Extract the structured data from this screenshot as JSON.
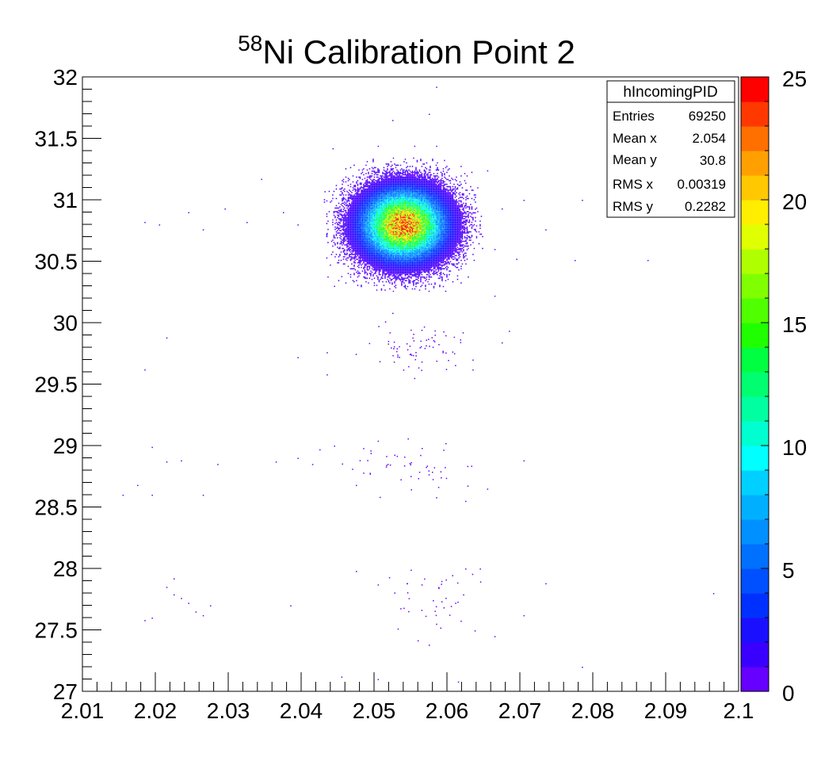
{
  "chart_data": {
    "type": "heatmap",
    "title_sup": "58",
    "title_main": "Ni Calibration Point 2",
    "xlim": [
      2.01,
      2.1
    ],
    "ylim": [
      27,
      32
    ],
    "x_ticks": [
      "2.01",
      "2.02",
      "2.03",
      "2.04",
      "2.05",
      "2.06",
      "2.07",
      "2.08",
      "2.09",
      "2.1"
    ],
    "x_tick_values": [
      2.01,
      2.02,
      2.03,
      2.04,
      2.05,
      2.06,
      2.07,
      2.08,
      2.09,
      2.1
    ],
    "y_ticks": [
      "27",
      "27.5",
      "28",
      "28.5",
      "29",
      "29.5",
      "30",
      "30.5",
      "31",
      "31.5",
      "32"
    ],
    "y_tick_values": [
      27,
      27.5,
      28,
      28.5,
      29,
      29.5,
      30,
      30.5,
      31,
      31.5,
      32
    ],
    "z_range": [
      0,
      25
    ],
    "z_ticks": [
      "0",
      "5",
      "10",
      "15",
      "20",
      "25"
    ],
    "z_tick_values": [
      0,
      5,
      10,
      15,
      20,
      25
    ],
    "palette": [
      "#6600ff",
      "#3a00ff",
      "#1a10ff",
      "#0030ff",
      "#0050ff",
      "#0070ff",
      "#0090ff",
      "#00b0ff",
      "#00d0ff",
      "#00ffff",
      "#00ffd0",
      "#00ffa0",
      "#00ff70",
      "#00ff40",
      "#20ff00",
      "#50ff00",
      "#80ff00",
      "#b0ff00",
      "#e0ff00",
      "#ffee00",
      "#ffc800",
      "#ffa000",
      "#ff7000",
      "#ff3800",
      "#ff0000"
    ],
    "clusters": [
      {
        "x_mean": 2.054,
        "y_mean": 30.8,
        "x_sigma": 0.0032,
        "y_sigma": 0.16,
        "peak": 23
      },
      {
        "x_mean": 2.056,
        "y_mean": 29.82,
        "x_sigma": 0.0033,
        "y_sigma": 0.09,
        "peak": 1
      },
      {
        "x_mean": 2.056,
        "y_mean": 28.82,
        "x_sigma": 0.0045,
        "y_sigma": 0.1,
        "peak": 1
      },
      {
        "x_mean": 2.059,
        "y_mean": 27.72,
        "x_sigma": 0.004,
        "y_sigma": 0.14,
        "peak": 1
      }
    ],
    "scatter_points": [
      [
        2.0585,
        31.92
      ],
      [
        2.0525,
        31.65
      ],
      [
        2.0575,
        31.7
      ],
      [
        2.0443,
        31.42
      ],
      [
        2.0505,
        31.44
      ],
      [
        2.0555,
        31.44
      ],
      [
        2.0585,
        31.44
      ],
      [
        2.0655,
        31.24
      ],
      [
        2.0625,
        31.14
      ],
      [
        2.0345,
        31.17
      ],
      [
        2.0432,
        31.07
      ],
      [
        2.0455,
        31.1
      ],
      [
        2.0705,
        31.0
      ],
      [
        2.0785,
        31.0
      ],
      [
        2.0825,
        30.99
      ],
      [
        2.0245,
        30.9
      ],
      [
        2.0295,
        30.93
      ],
      [
        2.0375,
        30.9
      ],
      [
        2.0675,
        30.93
      ],
      [
        2.0825,
        30.92
      ],
      [
        2.0185,
        30.82
      ],
      [
        2.0205,
        30.8
      ],
      [
        2.0265,
        30.76
      ],
      [
        2.0325,
        30.82
      ],
      [
        2.0395,
        30.8
      ],
      [
        2.0435,
        30.73
      ],
      [
        2.0735,
        30.76
      ],
      [
        2.0665,
        30.6
      ],
      [
        2.0695,
        30.52
      ],
      [
        2.0775,
        30.51
      ],
      [
        2.0875,
        30.51
      ],
      [
        2.0455,
        30.38
      ],
      [
        2.0445,
        30.3
      ],
      [
        2.0665,
        30.22
      ],
      [
        2.0525,
        30.08
      ],
      [
        2.0515,
        30.01
      ],
      [
        2.0595,
        29.93
      ],
      [
        2.0675,
        29.84
      ],
      [
        2.0215,
        29.88
      ],
      [
        2.0435,
        29.76
      ],
      [
        2.0395,
        29.72
      ],
      [
        2.0635,
        29.7
      ],
      [
        2.0635,
        29.62
      ],
      [
        2.0435,
        29.58
      ],
      [
        2.0185,
        29.62
      ],
      [
        2.0555,
        29.55
      ],
      [
        2.0195,
        28.99
      ],
      [
        2.0215,
        28.87
      ],
      [
        2.0235,
        28.88
      ],
      [
        2.0285,
        28.85
      ],
      [
        2.0365,
        28.87
      ],
      [
        2.0395,
        28.9
      ],
      [
        2.0415,
        28.85
      ],
      [
        2.0425,
        28.97
      ],
      [
        2.0445,
        29.0
      ],
      [
        2.0485,
        28.98
      ],
      [
        2.0505,
        29.04
      ],
      [
        2.0495,
        28.96
      ],
      [
        2.0705,
        28.88
      ],
      [
        2.0485,
        28.78
      ],
      [
        2.0475,
        28.68
      ],
      [
        2.0655,
        28.65
      ],
      [
        2.0175,
        28.68
      ],
      [
        2.0155,
        28.6
      ],
      [
        2.0195,
        28.6
      ],
      [
        2.0265,
        28.6
      ],
      [
        2.0625,
        28.55
      ],
      [
        2.0585,
        28.58
      ],
      [
        2.0225,
        27.92
      ],
      [
        2.0215,
        27.85
      ],
      [
        2.0225,
        27.79
      ],
      [
        2.0235,
        27.76
      ],
      [
        2.0245,
        27.72
      ],
      [
        2.0255,
        27.65
      ],
      [
        2.0275,
        27.7
      ],
      [
        2.0265,
        27.62
      ],
      [
        2.0185,
        27.58
      ],
      [
        2.0195,
        27.6
      ],
      [
        2.0385,
        27.7
      ],
      [
        2.0475,
        27.98
      ],
      [
        2.0505,
        27.87
      ],
      [
        2.0545,
        27.88
      ],
      [
        2.0565,
        27.87
      ],
      [
        2.0625,
        28.0
      ],
      [
        2.0645,
        28.0
      ],
      [
        2.0735,
        27.88
      ],
      [
        2.0705,
        27.62
      ],
      [
        2.0665,
        27.45
      ],
      [
        2.0575,
        27.38
      ],
      [
        2.0585,
        27.55
      ],
      [
        2.0785,
        27.2
      ],
      [
        2.0455,
        27.12
      ],
      [
        2.0505,
        27.1
      ],
      [
        2.0615,
        27.08
      ],
      [
        2.0965,
        27.8
      ]
    ]
  },
  "stats_box": {
    "name": "hIncomingPID",
    "rows": [
      {
        "label": "Entries",
        "value": "69250"
      },
      {
        "label": "Mean x",
        "value": "2.054"
      },
      {
        "label": "Mean y",
        "value": "30.8"
      },
      {
        "label": "RMS x",
        "value": "0.00319"
      },
      {
        "label": "RMS y",
        "value": "0.2282"
      }
    ]
  }
}
